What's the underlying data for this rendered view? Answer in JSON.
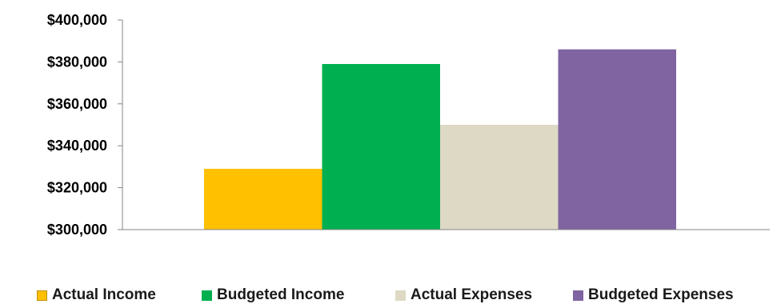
{
  "chart_data": {
    "type": "bar",
    "categories": [
      "Actual Income",
      "Budgeted Income",
      "Actual Expenses",
      "Budgeted Expenses"
    ],
    "values": [
      329000,
      379000,
      350000,
      386000
    ],
    "colors": [
      "#FFC000",
      "#00B050",
      "#DDD9C4",
      "#8064A2"
    ],
    "ylim": [
      300000,
      400000
    ],
    "yticks": [
      "$300,000",
      "$320,000",
      "$340,000",
      "$360,000",
      "$380,000",
      "$400,000"
    ],
    "ytick_values": [
      300000,
      320000,
      340000,
      360000,
      380000,
      400000
    ],
    "grid": false,
    "legend_position": "bottom",
    "legend": [
      {
        "label": "Actual Income",
        "color": "#FFC000"
      },
      {
        "label": "Budgeted Income",
        "color": "#00B050"
      },
      {
        "label": "Actual Expenses",
        "color": "#DDD9C4"
      },
      {
        "label": "Budgeted Expenses",
        "color": "#8064A2"
      }
    ]
  }
}
